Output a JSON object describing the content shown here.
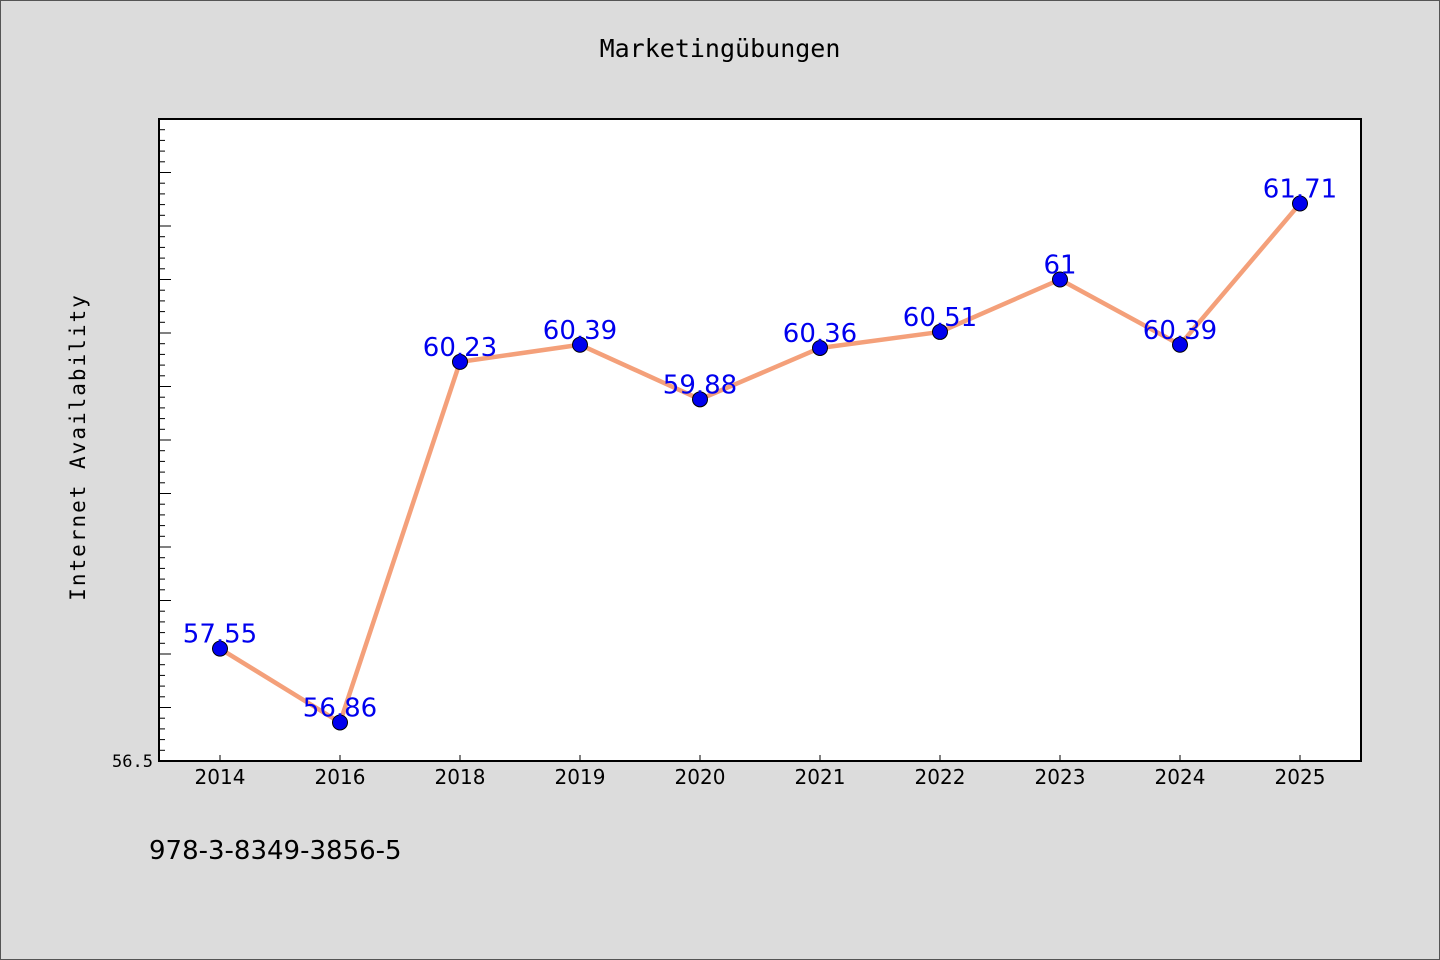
{
  "chart_data": {
    "type": "line",
    "title": "Marketingübungen",
    "xlabel": "",
    "ylabel": "Internet Availability",
    "categories": [
      "2014",
      "2016",
      "2018",
      "2019",
      "2020",
      "2021",
      "2022",
      "2023",
      "2024",
      "2025"
    ],
    "series": [
      {
        "values": [
          57.55,
          56.86,
          60.23,
          60.39,
          59.88,
          60.36,
          60.51,
          61,
          60.39,
          61.71
        ],
        "data_labels": [
          "57.55",
          "56.86",
          "60.23",
          "60.39",
          "59.88",
          "60.36",
          "60.51",
          "61",
          "60.39",
          "61.71"
        ],
        "line_color": "#f4a07a",
        "marker_color": "#0000ee",
        "label_color": "#0000ee"
      }
    ],
    "ylim": [
      56.5,
      62.5
    ],
    "y_tick_labels": [
      "56.5"
    ],
    "grid": false,
    "legend": "none"
  },
  "footer": {
    "isbn": "978-3-8349-3856-5"
  }
}
